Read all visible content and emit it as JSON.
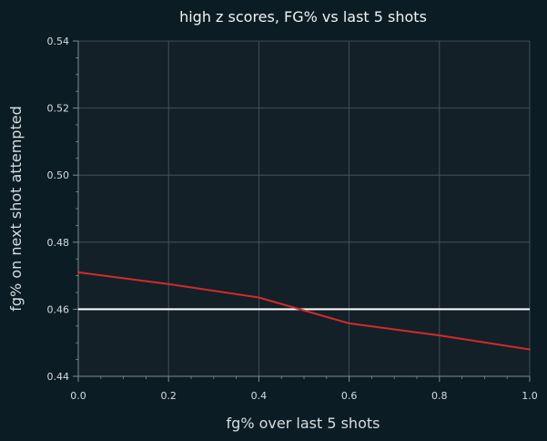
{
  "chart_data": {
    "type": "line",
    "title": "high z scores, FG% vs last 5 shots",
    "xlabel": "fg% over last 5 shots",
    "ylabel": "fg% on next shot attempted",
    "xlim": [
      0.0,
      1.0
    ],
    "ylim": [
      0.44,
      0.54
    ],
    "xticks": [
      "0.0",
      "0.2",
      "0.4",
      "0.6",
      "0.8",
      "1.0"
    ],
    "yticks": [
      "0.44",
      "0.46",
      "0.48",
      "0.50",
      "0.52",
      "0.54"
    ],
    "grid": true,
    "legend": "none",
    "series": [
      {
        "x": [
          0.0,
          0.2,
          0.4,
          0.6,
          0.8,
          1.0
        ],
        "y": [
          0.471,
          0.4675,
          0.4635,
          0.4558,
          0.4522,
          0.448
        ],
        "color": "#d42a2a"
      }
    ],
    "reference_line": {
      "y": 0.46,
      "color": "#ffffff"
    },
    "colors": {
      "background": "#0c1c24",
      "plot_background": "#132028",
      "grid": "#4d5a62",
      "axis": "#7f8a90",
      "text": "#d6dde1"
    }
  }
}
